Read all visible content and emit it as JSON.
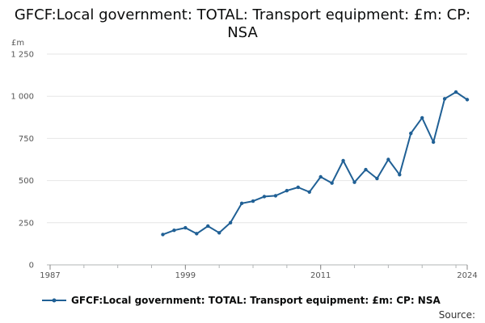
{
  "chart_data": {
    "type": "line",
    "title": "GFCF:Local government: TOTAL: Transport equipment: £m: CP: NSA",
    "unit_label": "£m",
    "xlabel": "",
    "ylabel": "£m",
    "xlim": [
      1987,
      2024
    ],
    "ylim": [
      0,
      1250
    ],
    "x_tick_labels": [
      "1987",
      "1999",
      "2011",
      "2024"
    ],
    "x_tick_values": [
      1987,
      1999,
      2011,
      2024
    ],
    "y_tick_labels": [
      "0",
      "250",
      "500",
      "750",
      "1 000",
      "1 250"
    ],
    "y_tick_values": [
      0,
      250,
      500,
      750,
      1000,
      1250
    ],
    "grid": true,
    "legend_position": "bottom-left",
    "series": [
      {
        "name": "GFCF:Local government: TOTAL: Transport equipment: £m: CP: NSA",
        "color": "#206095",
        "x": [
          1997,
          1998,
          1999,
          2000,
          2001,
          2002,
          2003,
          2004,
          2005,
          2006,
          2007,
          2008,
          2009,
          2010,
          2011,
          2012,
          2013,
          2014,
          2015,
          2016,
          2017,
          2018,
          2019,
          2020,
          2021,
          2022,
          2023,
          2024
        ],
        "values": [
          180,
          205,
          220,
          185,
          230,
          190,
          250,
          365,
          378,
          405,
          410,
          440,
          460,
          432,
          522,
          485,
          618,
          490,
          565,
          512,
          625,
          535,
          780,
          872,
          728,
          985,
          1025,
          980
        ]
      }
    ]
  },
  "source_label": "Source:"
}
